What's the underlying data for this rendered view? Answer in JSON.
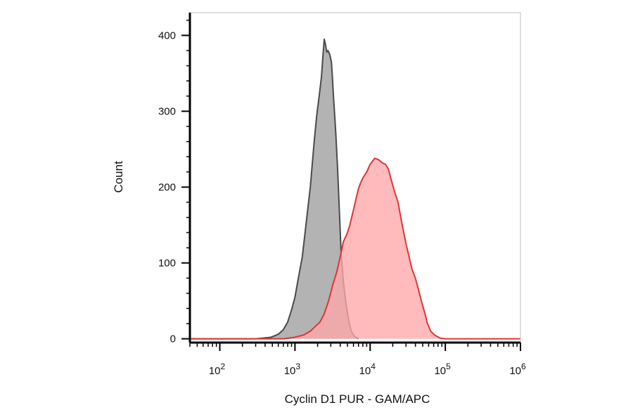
{
  "chart_data": {
    "type": "area",
    "title": "",
    "xlabel": "Cyclin D1 PUR - GAM/APC",
    "ylabel": "Count",
    "x_scale": "log",
    "xlim": [
      40,
      1000000
    ],
    "ylim": [
      -5,
      430
    ],
    "grid": false,
    "legend": "none",
    "x_ticks": [
      {
        "value": 100,
        "base": "10",
        "exp": "2"
      },
      {
        "value": 1000,
        "base": "10",
        "exp": "3"
      },
      {
        "value": 10000,
        "base": "10",
        "exp": "4"
      },
      {
        "value": 100000,
        "base": "10",
        "exp": "5"
      },
      {
        "value": 1000000,
        "base": "10",
        "exp": "6"
      }
    ],
    "y_ticks": [
      {
        "value": 0,
        "label": "0"
      },
      {
        "value": 100,
        "label": "100"
      },
      {
        "value": 200,
        "label": "200"
      },
      {
        "value": 300,
        "label": "300"
      },
      {
        "value": 400,
        "label": "400"
      }
    ],
    "series": [
      {
        "fill": "#b3b3b3",
        "stroke": "#4a4a4a",
        "points": [
          [
            40,
            0
          ],
          [
            300,
            0
          ],
          [
            480,
            2
          ],
          [
            600,
            6
          ],
          [
            700,
            12
          ],
          [
            800,
            22
          ],
          [
            900,
            38
          ],
          [
            1000,
            55
          ],
          [
            1100,
            78
          ],
          [
            1250,
            108
          ],
          [
            1400,
            150
          ],
          [
            1600,
            200
          ],
          [
            1800,
            260
          ],
          [
            1950,
            295
          ],
          [
            2100,
            320
          ],
          [
            2250,
            345
          ],
          [
            2350,
            372
          ],
          [
            2450,
            395
          ],
          [
            2550,
            388
          ],
          [
            2650,
            378
          ],
          [
            2750,
            380
          ],
          [
            2900,
            375
          ],
          [
            3050,
            365
          ],
          [
            3150,
            345
          ],
          [
            3250,
            320
          ],
          [
            3350,
            300
          ],
          [
            3500,
            270
          ],
          [
            3700,
            222
          ],
          [
            3850,
            180
          ],
          [
            4100,
            115
          ],
          [
            4400,
            75
          ],
          [
            4800,
            45
          ],
          [
            5200,
            24
          ],
          [
            5600,
            10
          ],
          [
            6200,
            3
          ],
          [
            7000,
            0
          ]
        ]
      },
      {
        "fill": "#ffa6a9",
        "stroke": "#e03535",
        "points": [
          [
            40,
            0
          ],
          [
            700,
            0
          ],
          [
            1000,
            2
          ],
          [
            1300,
            5
          ],
          [
            1600,
            10
          ],
          [
            1850,
            16
          ],
          [
            2150,
            22
          ],
          [
            2450,
            33
          ],
          [
            2800,
            50
          ],
          [
            3200,
            72
          ],
          [
            3600,
            88
          ],
          [
            4000,
            108
          ],
          [
            4400,
            128
          ],
          [
            4900,
            138
          ],
          [
            5300,
            148
          ],
          [
            5600,
            158
          ],
          [
            6000,
            170
          ],
          [
            6500,
            185
          ],
          [
            7000,
            198
          ],
          [
            7500,
            206
          ],
          [
            8000,
            212
          ],
          [
            9000,
            220
          ],
          [
            10000,
            230
          ],
          [
            11500,
            238
          ],
          [
            13000,
            236
          ],
          [
            14500,
            232
          ],
          [
            16000,
            230
          ],
          [
            17500,
            224
          ],
          [
            19000,
            210
          ],
          [
            21000,
            195
          ],
          [
            23500,
            180
          ],
          [
            26500,
            152
          ],
          [
            30000,
            125
          ],
          [
            33000,
            108
          ],
          [
            36000,
            92
          ],
          [
            40000,
            80
          ],
          [
            44000,
            65
          ],
          [
            48000,
            50
          ],
          [
            53000,
            35
          ],
          [
            58000,
            20
          ],
          [
            64000,
            10
          ],
          [
            72000,
            5
          ],
          [
            85000,
            1
          ],
          [
            100000,
            0
          ],
          [
            1000000,
            0
          ]
        ]
      }
    ]
  }
}
